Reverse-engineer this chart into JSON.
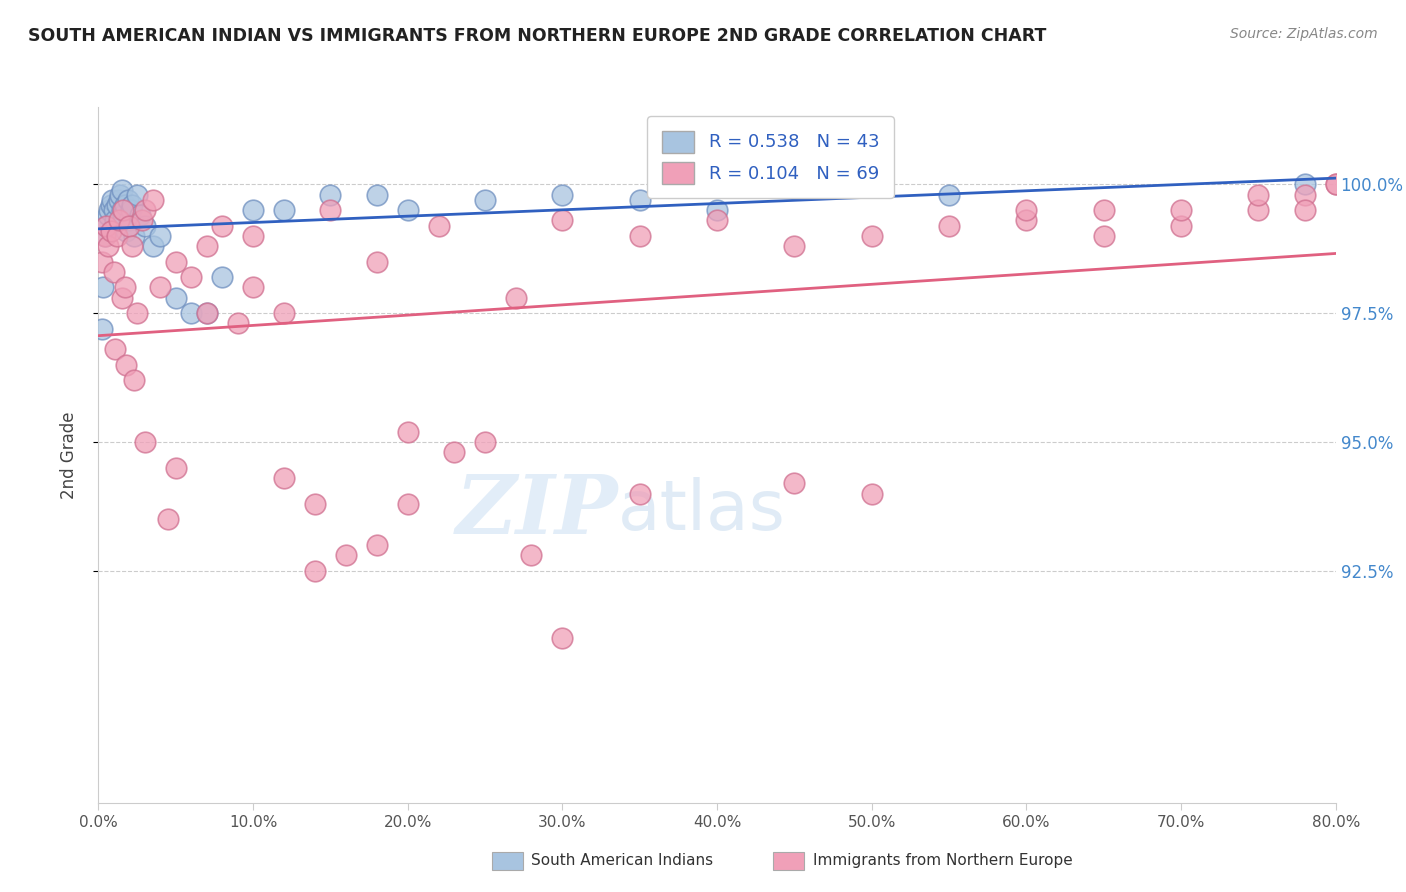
{
  "title": "SOUTH AMERICAN INDIAN VS IMMIGRANTS FROM NORTHERN EUROPE 2ND GRADE CORRELATION CHART",
  "source": "Source: ZipAtlas.com",
  "ylabel": "2nd Grade",
  "xlim": [
    0.0,
    80.0
  ],
  "ylim": [
    88.0,
    101.5
  ],
  "ytick_labels": [
    "100.0%",
    "97.5%",
    "95.0%",
    "92.5%"
  ],
  "ytick_vals": [
    100.0,
    97.5,
    95.0,
    92.5
  ],
  "xticks": [
    0.0,
    10.0,
    20.0,
    30.0,
    40.0,
    50.0,
    60.0,
    70.0,
    80.0
  ],
  "blue_R": 0.538,
  "blue_N": 43,
  "pink_R": 0.104,
  "pink_N": 69,
  "blue_color": "#a8c4e0",
  "pink_color": "#f0a0b8",
  "blue_edge_color": "#7090c0",
  "pink_edge_color": "#d07090",
  "blue_line_color": "#3060c0",
  "pink_line_color": "#e06080",
  "legend_text_color": "#3060c0",
  "watermark_zip": "ZIP",
  "watermark_atlas": "atlas",
  "blue_scatter_x": [
    0.2,
    0.3,
    0.4,
    0.5,
    0.6,
    0.7,
    0.8,
    0.9,
    1.0,
    1.1,
    1.2,
    1.3,
    1.4,
    1.5,
    1.5,
    1.6,
    1.7,
    1.8,
    1.9,
    2.0,
    2.1,
    2.2,
    2.3,
    2.5,
    2.7,
    3.0,
    3.5,
    4.0,
    5.0,
    6.0,
    7.0,
    8.0,
    10.0,
    12.0,
    15.0,
    18.0,
    20.0,
    25.0,
    30.0,
    35.0,
    40.0,
    55.0,
    78.0
  ],
  "blue_scatter_y": [
    97.2,
    98.0,
    99.0,
    99.2,
    99.4,
    99.5,
    99.6,
    99.7,
    99.5,
    99.3,
    99.6,
    99.7,
    99.8,
    99.9,
    99.5,
    99.4,
    99.6,
    99.1,
    99.7,
    99.3,
    99.5,
    99.6,
    99.0,
    99.8,
    99.4,
    99.2,
    98.8,
    99.0,
    97.8,
    97.5,
    97.5,
    98.2,
    99.5,
    99.5,
    99.8,
    99.8,
    99.5,
    99.7,
    99.8,
    99.7,
    99.5,
    99.8,
    100.0
  ],
  "pink_scatter_x": [
    0.2,
    0.4,
    0.5,
    0.6,
    0.8,
    1.0,
    1.1,
    1.2,
    1.3,
    1.5,
    1.6,
    1.7,
    1.8,
    2.0,
    2.2,
    2.3,
    2.5,
    2.8,
    3.0,
    3.5,
    4.0,
    4.5,
    5.0,
    6.0,
    7.0,
    8.0,
    9.0,
    10.0,
    12.0,
    14.0,
    15.0,
    16.0,
    18.0,
    20.0,
    22.0,
    25.0,
    27.0,
    30.0,
    35.0,
    40.0,
    45.0,
    50.0,
    55.0,
    60.0,
    65.0,
    70.0,
    75.0,
    78.0,
    80.0,
    3.0,
    5.0,
    7.0,
    12.0,
    14.0,
    10.0,
    18.0,
    20.0,
    23.0,
    28.0,
    30.0,
    35.0,
    45.0,
    50.0,
    60.0,
    65.0,
    70.0,
    75.0,
    78.0,
    80.0
  ],
  "pink_scatter_y": [
    98.5,
    99.0,
    99.2,
    98.8,
    99.1,
    98.3,
    96.8,
    99.0,
    99.3,
    97.8,
    99.5,
    98.0,
    96.5,
    99.2,
    98.8,
    96.2,
    97.5,
    99.3,
    99.5,
    99.7,
    98.0,
    93.5,
    98.5,
    98.2,
    98.8,
    99.2,
    97.3,
    99.0,
    97.5,
    93.8,
    99.5,
    92.8,
    98.5,
    95.2,
    99.2,
    95.0,
    97.8,
    99.3,
    99.0,
    99.3,
    98.8,
    99.0,
    99.2,
    99.3,
    99.5,
    99.2,
    99.5,
    99.8,
    100.0,
    95.0,
    94.5,
    97.5,
    94.3,
    92.5,
    98.0,
    93.0,
    93.8,
    94.8,
    92.8,
    91.2,
    94.0,
    94.2,
    94.0,
    99.5,
    99.0,
    99.5,
    99.8,
    99.5,
    100.0
  ]
}
